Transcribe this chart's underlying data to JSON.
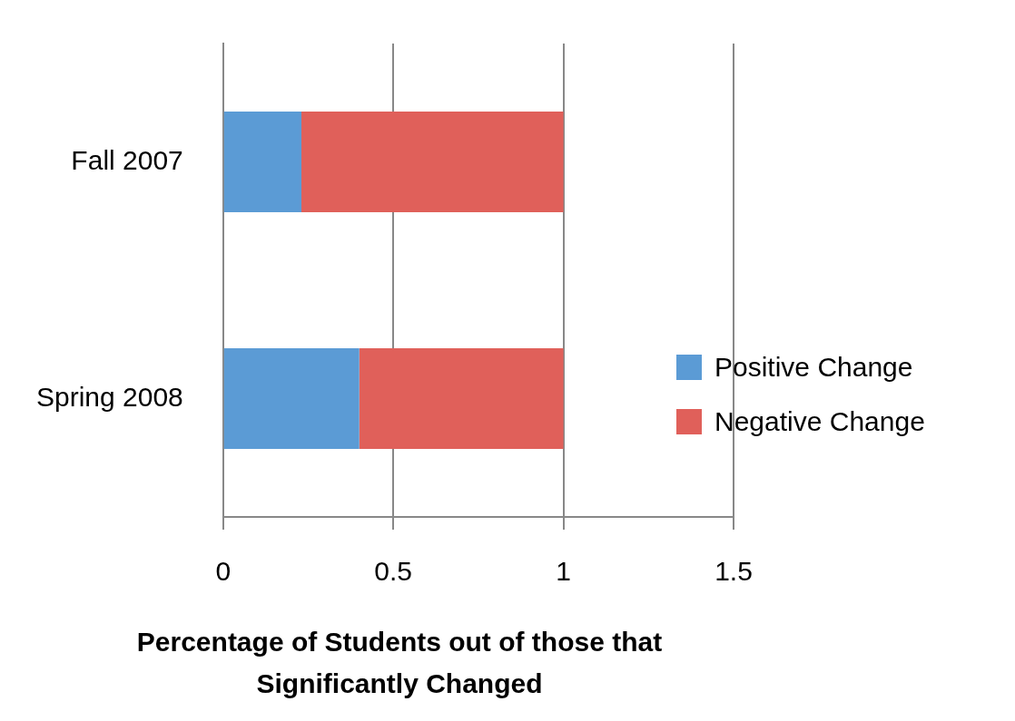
{
  "chart_data": {
    "type": "bar",
    "orientation": "horizontal",
    "stacked": true,
    "xlabel": "Percentage of Students out of those that Significantly Changed",
    "categories": [
      "Fall 2007",
      "Spring 2008"
    ],
    "series": [
      {
        "name": "Positive Change",
        "color": "#5b9bd5",
        "values": [
          0.23,
          0.4
        ]
      },
      {
        "name": "Negative Change",
        "color": "#e0605a",
        "values": [
          0.77,
          0.6
        ]
      }
    ],
    "xlim": [
      0,
      1.5
    ],
    "xticks": [
      0,
      0.5,
      1,
      1.5
    ],
    "grid": "x",
    "legend": "right"
  }
}
